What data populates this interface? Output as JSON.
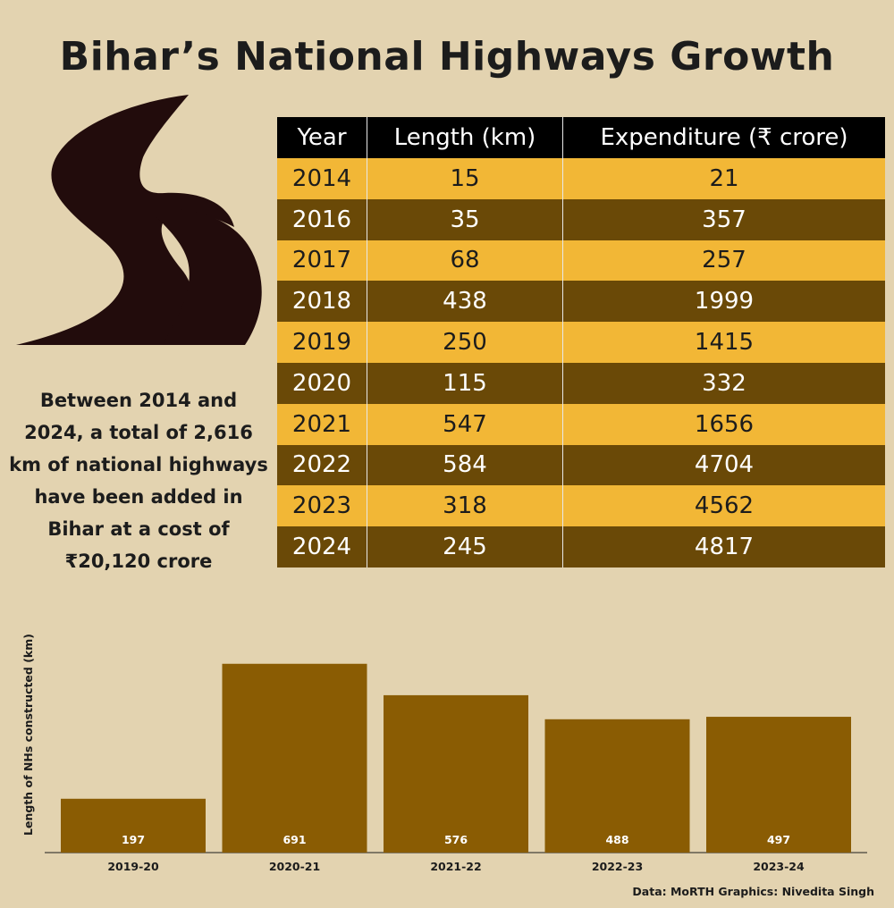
{
  "title": "Bihar’s National Highways Growth",
  "summary": "Between 2014 and 2024, a total of 2,616 km of national highways have been added in Bihar at a cost of ₹20,120 crore",
  "table": {
    "headers": [
      "Year",
      "Length (km)",
      "Expenditure (₹ crore)"
    ],
    "rows": [
      [
        "2014",
        "15",
        "21"
      ],
      [
        "2016",
        "35",
        "357"
      ],
      [
        "2017",
        "68",
        "257"
      ],
      [
        "2018",
        "438",
        "1999"
      ],
      [
        "2019",
        "250",
        "1415"
      ],
      [
        "2020",
        "115",
        "332"
      ],
      [
        "2021",
        "547",
        "1656"
      ],
      [
        "2022",
        "584",
        "4704"
      ],
      [
        "2023",
        "318",
        "4562"
      ],
      [
        "2024",
        "245",
        "4817"
      ]
    ]
  },
  "colors": {
    "background": "#e3d3b0",
    "row_light": "#f2b736",
    "row_dark": "#6a4907",
    "bar": "#8a5c03",
    "road": "#220c0c"
  },
  "icons": [
    "road-icon"
  ],
  "chart_data": {
    "type": "bar",
    "categories": [
      "2019-20",
      "2020-21",
      "2021-22",
      "2022-23",
      "2023-24"
    ],
    "values": [
      197,
      691,
      576,
      488,
      497
    ],
    "ylabel": "Length of NHs constructed (km)",
    "ylim": [
      0,
      700
    ],
    "grid": false,
    "data_labels": true
  },
  "footer": "Data: MoRTH Graphics: Nivedita Singh"
}
